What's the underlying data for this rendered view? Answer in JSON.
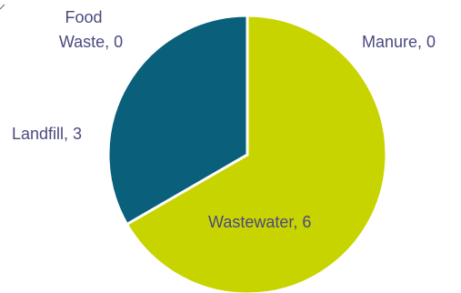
{
  "chart_data": {
    "type": "pie",
    "categories": [
      "Manure",
      "Wastewater",
      "Landfill",
      "Food Waste"
    ],
    "values": [
      0,
      6,
      3,
      0
    ],
    "colors": [
      "#2f6f99",
      "#c8d400",
      "#0a5f7a",
      "#7a3b8f"
    ],
    "labels": {
      "manure": "Manure, 0",
      "wastewater": "Wastewater, 6",
      "landfill": "Landfill, 3",
      "food_line1": "Food",
      "food_line2": "Waste, 0"
    },
    "start_angle_deg": 0,
    "direction": "clockwise",
    "legend": "none"
  }
}
